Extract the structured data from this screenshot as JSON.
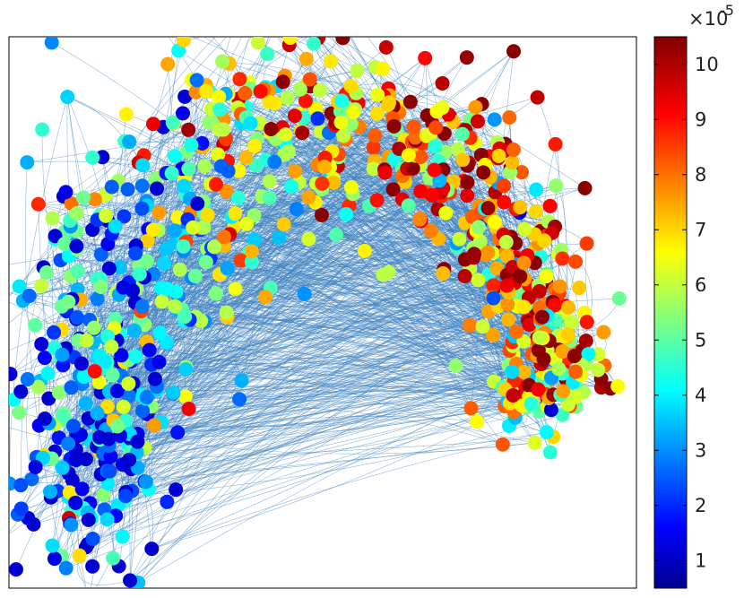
{
  "chart_data": {
    "type": "scatter",
    "title": "",
    "xlabel": "",
    "ylabel": "",
    "axes_ticks_visible": false,
    "grid": false,
    "description_of_marks": "network graph: circular nodes colored by value, connected by thin blue curved edges",
    "edge_color": "#3a7fc0",
    "colorbar": {
      "colormap": "jet",
      "range": [
        5e-06,
        0.000105
      ],
      "ticks": [
        1,
        2,
        3,
        4,
        5,
        6,
        7,
        8,
        9,
        10
      ],
      "tick_labels": [
        "1",
        "2",
        "3",
        "4",
        "5",
        "6",
        "7",
        "8",
        "9",
        "10"
      ],
      "multiplier_base": "×10",
      "multiplier_exponent": "-5",
      "placement": "right"
    },
    "node_count_estimate": 1200,
    "node_value_range": [
      1.5e-05,
      0.000105
    ],
    "value_trend": "higher values concentrated in upper-right region; lower mixed values in left lobe"
  }
}
